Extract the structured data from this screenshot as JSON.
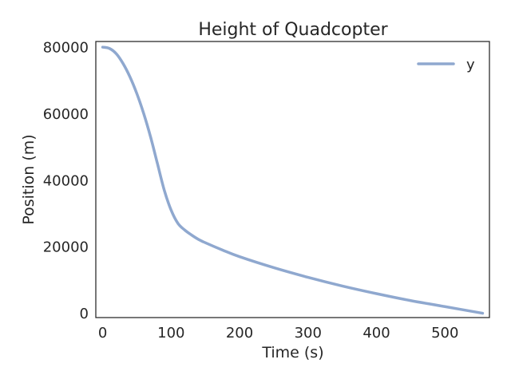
{
  "chart_data": {
    "type": "line",
    "title": "Height of Quadcopter",
    "xlabel": "Time (s)",
    "ylabel": "Position (m)",
    "xlim": [
      -10,
      565
    ],
    "ylim": [
      -1300,
      81700
    ],
    "xticks": [
      0,
      100,
      200,
      300,
      400,
      500
    ],
    "yticks": [
      0,
      20000,
      40000,
      60000,
      80000
    ],
    "xtick_labels": [
      "0",
      "100",
      "200",
      "300",
      "400",
      "500"
    ],
    "ytick_labels": [
      "0",
      "20000",
      "40000",
      "60000",
      "80000"
    ],
    "grid": false,
    "legend": {
      "position": "top-right",
      "entries": [
        "y"
      ]
    },
    "series": [
      {
        "name": "y",
        "color": "#8fa8cf",
        "x": [
          0,
          10,
          20,
          30,
          40,
          50,
          60,
          70,
          80,
          90,
          100,
          110,
          120,
          130,
          140,
          150,
          175,
          200,
          250,
          300,
          350,
          400,
          450,
          500,
          555
        ],
        "y": [
          80000,
          79600,
          78000,
          75000,
          71000,
          66000,
          60000,
          53000,
          45000,
          37000,
          31000,
          27000,
          25000,
          23500,
          22200,
          21200,
          19000,
          17000,
          13700,
          10800,
          8200,
          5900,
          3800,
          2000,
          0
        ]
      }
    ]
  }
}
